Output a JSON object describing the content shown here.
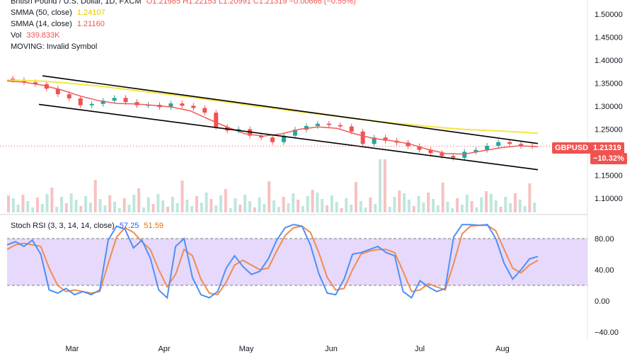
{
  "header": {
    "symbol_line_prefix": "British Pound / U.S. Dollar, 1D, FXCM",
    "ohlc": "O1.21985  H1.22153  L1.20991  C1.21319  −0.00666 (−0.55%)",
    "sma50_label": "SMMA (50, close)",
    "sma50_value": "1.24107",
    "sma14_label": "SMMA (14, close)",
    "sma14_value": "1.21160",
    "vol_label": "Vol",
    "vol_value": "339.833K",
    "moving_label": "MOVING: Invalid Symbol"
  },
  "stoch_header": {
    "label": "Stoch RSI (3, 3, 14, 14, close)",
    "k_value": "57.25",
    "d_value": "51.59"
  },
  "price_tag": {
    "symbol": "GBPUSD",
    "price": "1.21319",
    "change": "−10.32%"
  },
  "colors": {
    "up": "#26a69a",
    "down": "#ef5350",
    "sma50": "#f5e642",
    "sma14": "#f05a5a",
    "stoch_k": "#4f8ff5",
    "stoch_d": "#f08c4f",
    "band_fill": "#e6d9fb",
    "trendline": "#000000"
  },
  "chart_data": [
    {
      "type": "candlestick",
      "title": "British Pound / U.S. Dollar, 1D, FXCM",
      "x_ticks": [
        "Mar",
        "Apr",
        "May",
        "Jun",
        "Jul",
        "Aug"
      ],
      "y_ticks": [
        "1.50000",
        "1.45000",
        "1.40000",
        "1.35000",
        "1.30000",
        "1.25000",
        "1.20000",
        "1.15000",
        "1.10000"
      ],
      "ylim": [
        1.09,
        1.51
      ],
      "weekly_close": [
        1.357,
        1.352,
        1.348,
        1.338,
        1.326,
        1.317,
        1.302,
        1.305,
        1.312,
        1.318,
        1.309,
        1.302,
        1.303,
        1.298,
        1.306,
        1.301,
        1.296,
        1.286,
        1.255,
        1.247,
        1.25,
        1.236,
        1.232,
        1.222,
        1.236,
        1.249,
        1.257,
        1.262,
        1.259,
        1.256,
        1.245,
        1.218,
        1.232,
        1.225,
        1.221,
        1.213,
        1.205,
        1.198,
        1.192,
        1.188,
        1.201,
        1.205,
        1.214,
        1.222,
        1.218,
        1.214,
        1.213
      ],
      "sma50": [
        1.357,
        1.356,
        1.354,
        1.351,
        1.347,
        1.343,
        1.338,
        1.333,
        1.328,
        1.323,
        1.318,
        1.312,
        1.307,
        1.301,
        1.296,
        1.29,
        1.285,
        1.28,
        1.275,
        1.27,
        1.265,
        1.261,
        1.257,
        1.253,
        1.25,
        1.248,
        1.246,
        1.244,
        1.241
      ],
      "sma14": [
        1.355,
        1.352,
        1.345,
        1.335,
        1.322,
        1.312,
        1.306,
        1.305,
        1.302,
        1.298,
        1.29,
        1.272,
        1.255,
        1.24,
        1.235,
        1.24,
        1.25,
        1.255,
        1.252,
        1.24,
        1.23,
        1.225,
        1.218,
        1.206,
        1.197,
        1.196,
        1.203,
        1.21,
        1.214,
        1.212
      ],
      "channel_upper": {
        "start": 1.366,
        "end": 1.219
      },
      "channel_lower": {
        "start": 1.304,
        "end": 1.162
      },
      "last_price": 1.21319
    },
    {
      "type": "line",
      "title": "Stoch RSI (3, 3, 14, 14, close)",
      "y_ticks": [
        "80.00",
        "40.00",
        "0.00",
        "−40.00"
      ],
      "ylim": [
        -50,
        100
      ],
      "band": [
        20,
        80
      ],
      "series": [
        {
          "name": "K",
          "values": [
            72,
            76,
            70,
            78,
            60,
            14,
            10,
            16,
            8,
            12,
            8,
            14,
            78,
            96,
            92,
            68,
            78,
            55,
            14,
            4,
            70,
            80,
            30,
            8,
            4,
            12,
            42,
            58,
            44,
            34,
            38,
            54,
            78,
            94,
            98,
            96,
            72,
            35,
            10,
            8,
            28,
            60,
            62,
            66,
            70,
            62,
            58,
            12,
            4,
            26,
            18,
            12,
            16,
            82,
            98,
            98,
            97,
            98,
            80,
            48,
            28,
            40,
            54,
            57
          ]
        },
        {
          "name": "D",
          "values": [
            66,
            72,
            74,
            72,
            70,
            42,
            20,
            12,
            14,
            12,
            10,
            12,
            48,
            82,
            94,
            88,
            76,
            66,
            40,
            18,
            34,
            66,
            58,
            28,
            10,
            8,
            24,
            46,
            52,
            46,
            40,
            42,
            64,
            84,
            94,
            96,
            88,
            62,
            30,
            14,
            16,
            40,
            60,
            64,
            66,
            66,
            62,
            38,
            12,
            14,
            22,
            18,
            14,
            48,
            86,
            96,
            97,
            97,
            90,
            66,
            42,
            36,
            46,
            52
          ]
        }
      ]
    }
  ]
}
